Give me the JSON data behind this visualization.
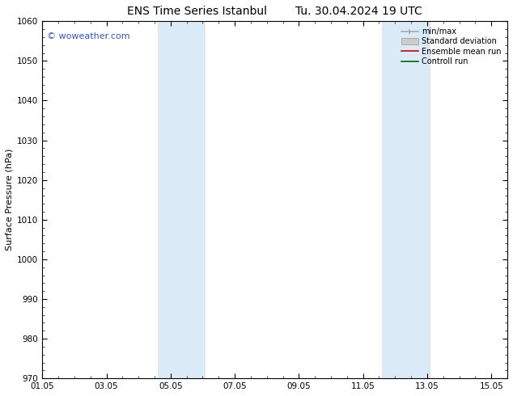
{
  "title_left": "ENS Time Series Istanbul",
  "title_right": "Tu. 30.04.2024 19 UTC",
  "ylabel": "Surface Pressure (hPa)",
  "ylim": [
    970,
    1060
  ],
  "yticks": [
    970,
    980,
    990,
    1000,
    1010,
    1020,
    1030,
    1040,
    1050,
    1060
  ],
  "xlim_start": 0,
  "xlim_end": 14.5,
  "xtick_labels": [
    "01.05",
    "03.05",
    "05.05",
    "07.05",
    "09.05",
    "11.05",
    "13.05",
    "15.05"
  ],
  "xtick_positions": [
    0,
    2,
    4,
    6,
    8,
    10,
    12,
    14
  ],
  "shaded_bands": [
    {
      "x_start": 3.6,
      "x_end": 5.1,
      "color": "#daeaf7"
    },
    {
      "x_start": 10.6,
      "x_end": 12.1,
      "color": "#daeaf7"
    }
  ],
  "watermark_text": "© woweather.com",
  "watermark_color": "#3355cc",
  "watermark_fontsize": 8,
  "legend_labels": [
    "min/max",
    "Standard deviation",
    "Ensemble mean run",
    "Controll run"
  ],
  "legend_colors": [
    "#aaaaaa",
    "#cccccc",
    "#cc0000",
    "#006600"
  ],
  "background_color": "#ffffff",
  "title_fontsize": 10,
  "axis_fontsize": 8,
  "tick_fontsize": 7.5
}
